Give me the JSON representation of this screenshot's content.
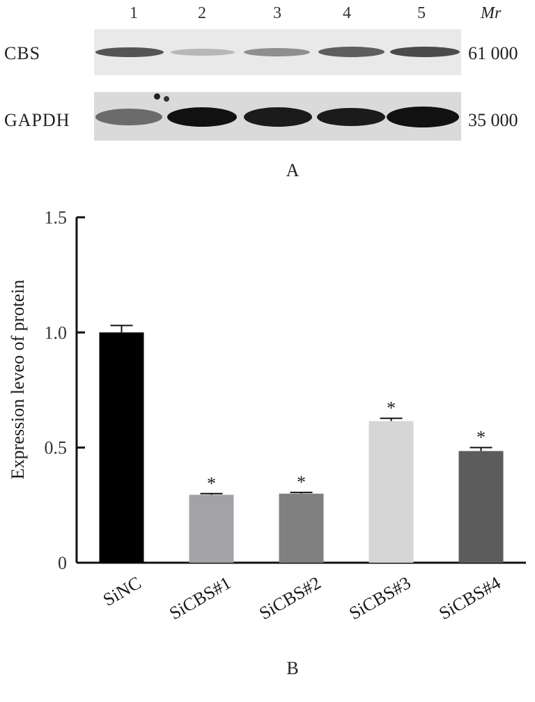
{
  "panel_a": {
    "label": "A",
    "lanes": [
      "1",
      "2",
      "3",
      "4",
      "5"
    ],
    "mr_header": "Mr",
    "rows": [
      {
        "name": "CBS",
        "mw": "61 000",
        "band_intensity": [
          0.75,
          0.25,
          0.45,
          0.7,
          0.8
        ]
      },
      {
        "name": "GAPDH",
        "mw": "35 000",
        "band_intensity": [
          0.55,
          1.0,
          0.95,
          0.95,
          1.0
        ]
      }
    ]
  },
  "panel_b": {
    "label": "B"
  },
  "chart_data": {
    "type": "bar",
    "title": "",
    "xlabel": "",
    "ylabel": "Expression leveo of protein",
    "ylim": [
      0,
      1.5
    ],
    "yticks": [
      0,
      0.5,
      1.0,
      1.5
    ],
    "ytick_labels": [
      "0",
      "0.5",
      "1.0",
      "1.5"
    ],
    "categories": [
      "SiNC",
      "SiCBS#1",
      "SiCBS#2",
      "SiCBS#3",
      "SiCBS#4"
    ],
    "values": [
      1.0,
      0.295,
      0.3,
      0.615,
      0.485
    ],
    "errors": [
      0.03,
      0.005,
      0.005,
      0.012,
      0.015
    ],
    "significance": [
      "",
      "*",
      "*",
      "*",
      "*"
    ],
    "colors": [
      "#000000",
      "#a3a3a7",
      "#808080",
      "#d6d6d6",
      "#5c5c5c"
    ],
    "grid": false,
    "legend": "none"
  }
}
